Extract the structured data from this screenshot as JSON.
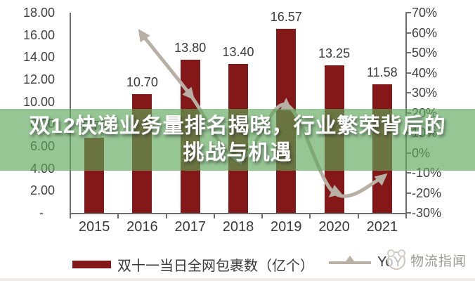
{
  "page": {
    "background": "#ffffff"
  },
  "overlay": {
    "title_line1": "双12快递业务量排名揭晓，行业繁荣背后的",
    "title_line2": "挑战与机遇",
    "band_color_rgba": "rgba(92,167,89,0.65)",
    "text_color": "#ffffff"
  },
  "legend": {
    "bar_label": "双十一当日全网包裹数（亿个）",
    "line_label": "YoY",
    "bar_swatch_color": "#841818",
    "line_swatch_color": "#b9b0a5"
  },
  "watermark": {
    "text": "物流指闻",
    "color": "#9e9b96"
  },
  "chart_data": {
    "type": "bar+line",
    "categories": [
      "2015",
      "2016",
      "2017",
      "2018",
      "2019",
      "2020",
      "2021"
    ],
    "series": [
      {
        "name": "双十一当日全网包裹数（亿个）",
        "type": "bar",
        "axis": "left",
        "color": "#841818",
        "values": [
          6.78,
          10.7,
          13.8,
          13.4,
          16.57,
          13.25,
          11.58
        ],
        "data_labels": [
          "6.78",
          "10.70",
          "13.80",
          "13.40",
          "16.57",
          "13.25",
          "11.58"
        ]
      },
      {
        "name": "YoY",
        "type": "line",
        "axis": "right",
        "color": "#b9b0a5",
        "values_pct": [
          null,
          59,
          29,
          -3,
          24,
          -20,
          -12.5
        ]
      }
    ],
    "left_axis": {
      "min": 0,
      "max": 18,
      "ticks": [
        "18.00",
        "16.00",
        "14.00",
        "12.00",
        "10.00",
        "8.00",
        "6.00",
        "4.00",
        "2.00",
        "-"
      ]
    },
    "right_axis": {
      "min": -30,
      "max": 70,
      "ticks": [
        "70%",
        "60%",
        "50%",
        "40%",
        "30%",
        "20%",
        "10%",
        "0%",
        "-10%",
        "-20%",
        "-30%"
      ]
    },
    "grid": false,
    "legend_position": "bottom",
    "marker_angles_deg": [
      0,
      -35,
      140,
      150,
      0,
      230,
      50
    ],
    "text_color": "#3a3a3a",
    "axis_color": "#6e6e6e"
  }
}
